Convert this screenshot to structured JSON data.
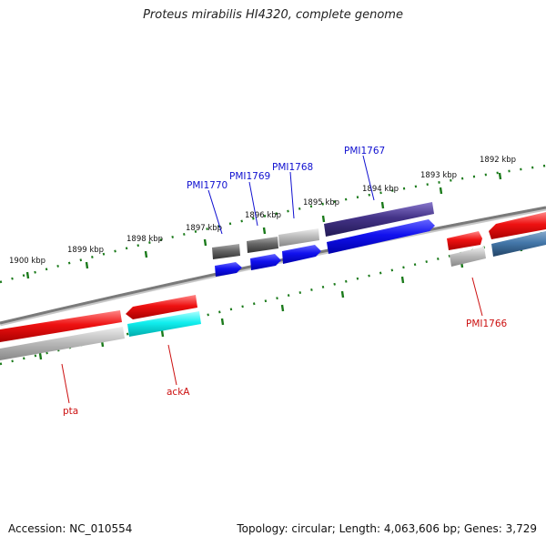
{
  "header": {
    "title": "Proteus mirabilis HI4320, complete genome"
  },
  "footer": {
    "accession": "Accession: NC_010554",
    "summary": "Topology: circular; Length: 4,063,606 bp; Genes: 3,729"
  },
  "scale_labels": [
    "1900 kbp",
    "1899 kbp",
    "1898 kbp",
    "1897 kbp",
    "1896 kbp",
    "1895 kbp",
    "1894 kbp",
    "1893 kbp",
    "1892 kbp"
  ],
  "gene_labels": {
    "pmi1770": "PMI1770",
    "pmi1769": "PMI1769",
    "pmi1768": "PMI1768",
    "pmi1767": "PMI1767",
    "pmi1766": "PMI1766",
    "acka": "ackA",
    "pta": "pta"
  },
  "colors": {
    "tick": "#1a7a1a",
    "backbone": "#808080",
    "blue_label": "#1010d0",
    "red_label": "#cc1010",
    "red_feature": "#ee1111",
    "blue_feature": "#1111ee",
    "cyan_feature": "#11eeee",
    "gray_feature": "#bbbbbb",
    "darkgray_feature": "#666666",
    "navy_feature": "#443388",
    "steel_feature": "#4477aa"
  }
}
